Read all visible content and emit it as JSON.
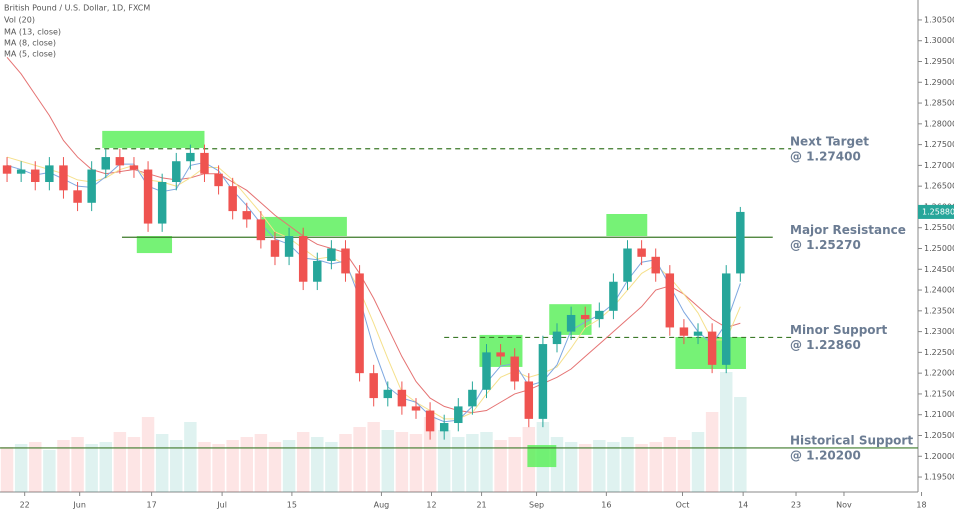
{
  "chart_data": {
    "type": "candlestick",
    "title": "British Pound / U.S. Dollar, 1D, FXCM",
    "volume_name": "Vol (20)",
    "xlim": [
      -1,
      129.2
    ],
    "ylim": [
      1.1914,
      1.3098
    ],
    "vol_ylim": [
      0,
      140
    ],
    "grid": false,
    "xticks": [
      {
        "value": 2.5,
        "label": "22"
      },
      {
        "value": 10.3,
        "label": "Jun"
      },
      {
        "value": 20.5,
        "label": "17"
      },
      {
        "value": 30.5,
        "label": "Jul"
      },
      {
        "value": 40.4,
        "label": "15"
      },
      {
        "value": 53.1,
        "label": "Aug"
      },
      {
        "value": 60.2,
        "label": "12"
      },
      {
        "value": 67.3,
        "label": "21"
      },
      {
        "value": 75.1,
        "label": "Sep"
      },
      {
        "value": 85,
        "label": "16"
      },
      {
        "value": 95.8,
        "label": "Oct"
      },
      {
        "value": 104.4,
        "label": "14"
      },
      {
        "value": 111.9,
        "label": "23"
      },
      {
        "value": 118.7,
        "label": "Nov"
      },
      {
        "value": 129.7,
        "label": "18"
      }
    ],
    "yticks": [
      {
        "value": 1.195,
        "label": "1.19500"
      },
      {
        "value": 1.2,
        "label": "1.20000"
      },
      {
        "value": 1.205,
        "label": "1.20500"
      },
      {
        "value": 1.21,
        "label": "1.21000"
      },
      {
        "value": 1.215,
        "label": "1.21500"
      },
      {
        "value": 1.22,
        "label": "1.22000"
      },
      {
        "value": 1.225,
        "label": "1.22500"
      },
      {
        "value": 1.23,
        "label": "1.23000"
      },
      {
        "value": 1.235,
        "label": "1.23500"
      },
      {
        "value": 1.24,
        "label": "1.24000"
      },
      {
        "value": 1.245,
        "label": "1.24500"
      },
      {
        "value": 1.25,
        "label": "1.25000"
      },
      {
        "value": 1.255,
        "label": "1.25500"
      },
      {
        "value": 1.26,
        "label": "1.26000"
      },
      {
        "value": 1.265,
        "label": "1.26500"
      },
      {
        "value": 1.27,
        "label": "1.27000"
      },
      {
        "value": 1.275,
        "label": "1.27500"
      },
      {
        "value": 1.28,
        "label": "1.28000"
      },
      {
        "value": 1.285,
        "label": "1.28500"
      },
      {
        "value": 1.29,
        "label": "1.29000"
      },
      {
        "value": 1.295,
        "label": "1.29500"
      },
      {
        "value": 1.3,
        "label": "1.30000"
      },
      {
        "value": 1.305,
        "label": "1.30500"
      }
    ],
    "x": [
      0,
      2,
      4,
      6,
      8,
      10,
      12,
      14,
      16,
      18,
      20,
      22,
      24,
      26,
      28,
      30,
      32,
      34,
      36,
      38,
      40,
      42,
      44,
      46,
      48,
      50,
      52,
      54,
      56,
      58,
      60,
      62,
      64,
      66,
      68,
      70,
      72,
      74,
      76,
      78,
      80,
      82,
      84,
      86,
      88,
      90,
      92,
      94,
      96,
      98,
      100,
      102,
      104
    ],
    "up_color": "#26a69a",
    "down_color": "#ef5350",
    "ohlc": {
      "open": [
        1.27,
        1.268,
        1.269,
        1.266,
        1.27,
        1.264,
        1.261,
        1.269,
        1.272,
        1.27,
        1.269,
        1.256,
        1.266,
        1.271,
        1.273,
        1.268,
        1.265,
        1.259,
        1.257,
        1.252,
        1.248,
        1.253,
        1.242,
        1.247,
        1.25,
        1.244,
        1.22,
        1.214,
        1.216,
        1.212,
        1.211,
        1.206,
        1.208,
        1.212,
        1.216,
        1.225,
        1.224,
        1.218,
        1.209,
        1.227,
        1.23,
        1.234,
        1.233,
        1.235,
        1.242,
        1.25,
        1.248,
        1.244,
        1.231,
        1.229,
        1.23,
        1.222,
        1.244
      ],
      "high": [
        1.272,
        1.271,
        1.271,
        1.272,
        1.272,
        1.266,
        1.271,
        1.274,
        1.274,
        1.272,
        1.271,
        1.268,
        1.273,
        1.275,
        1.275,
        1.27,
        1.267,
        1.261,
        1.259,
        1.254,
        1.255,
        1.255,
        1.249,
        1.252,
        1.252,
        1.246,
        1.222,
        1.218,
        1.218,
        1.214,
        1.213,
        1.21,
        1.214,
        1.218,
        1.227,
        1.227,
        1.226,
        1.22,
        1.229,
        1.232,
        1.236,
        1.236,
        1.237,
        1.244,
        1.252,
        1.252,
        1.25,
        1.246,
        1.233,
        1.232,
        1.232,
        1.246,
        1.26
      ],
      "low": [
        1.266,
        1.266,
        1.264,
        1.264,
        1.262,
        1.259,
        1.259,
        1.267,
        1.268,
        1.267,
        1.254,
        1.254,
        1.264,
        1.269,
        1.266,
        1.263,
        1.257,
        1.255,
        1.25,
        1.246,
        1.246,
        1.24,
        1.24,
        1.245,
        1.242,
        1.218,
        1.212,
        1.212,
        1.21,
        1.209,
        1.204,
        1.204,
        1.206,
        1.21,
        1.214,
        1.222,
        1.216,
        1.207,
        1.207,
        1.225,
        1.228,
        1.231,
        1.231,
        1.233,
        1.24,
        1.246,
        1.242,
        1.229,
        1.227,
        1.227,
        1.22,
        1.22,
        1.242
      ],
      "close": [
        1.268,
        1.269,
        1.266,
        1.27,
        1.264,
        1.261,
        1.269,
        1.272,
        1.27,
        1.269,
        1.256,
        1.266,
        1.271,
        1.273,
        1.268,
        1.265,
        1.259,
        1.257,
        1.252,
        1.248,
        1.253,
        1.242,
        1.247,
        1.25,
        1.244,
        1.22,
        1.214,
        1.216,
        1.212,
        1.211,
        1.206,
        1.208,
        1.212,
        1.216,
        1.225,
        1.224,
        1.218,
        1.209,
        1.227,
        1.23,
        1.234,
        1.233,
        1.235,
        1.242,
        1.25,
        1.248,
        1.244,
        1.231,
        1.229,
        1.23,
        1.222,
        1.244,
        1.2588
      ]
    },
    "volume": [
      45,
      48,
      50,
      42,
      52,
      55,
      48,
      50,
      60,
      55,
      75,
      58,
      52,
      70,
      50,
      48,
      52,
      55,
      58,
      50,
      52,
      60,
      55,
      50,
      58,
      65,
      70,
      62,
      60,
      58,
      75,
      62,
      55,
      58,
      60,
      52,
      55,
      65,
      70,
      55,
      50,
      48,
      52,
      50,
      55,
      48,
      50,
      55,
      52,
      60,
      80,
      120,
      95
    ],
    "series": [
      {
        "name": "MA (13, close)",
        "color": "#e57373",
        "values": [
          1.296,
          1.292,
          1.287,
          1.282,
          1.276,
          1.272,
          1.269,
          1.268,
          1.2685,
          1.269,
          1.268,
          1.267,
          1.2665,
          1.267,
          1.268,
          1.268,
          1.266,
          1.264,
          1.261,
          1.258,
          1.2555,
          1.253,
          1.251,
          1.25,
          1.249,
          1.244,
          1.238,
          1.231,
          1.224,
          1.218,
          1.214,
          1.212,
          1.211,
          1.2105,
          1.211,
          1.213,
          1.215,
          1.216,
          1.2175,
          1.219,
          1.221,
          1.224,
          1.227,
          1.23,
          1.233,
          1.236,
          1.24,
          1.241,
          1.239,
          1.236,
          1.233,
          1.231,
          1.232
        ]
      },
      {
        "name": "MA (8, close)",
        "color": "#f5e08c",
        "values": [
          1.272,
          1.271,
          1.27,
          1.269,
          1.268,
          1.2665,
          1.266,
          1.267,
          1.269,
          1.27,
          1.2665,
          1.266,
          1.265,
          1.267,
          1.2695,
          1.2695,
          1.2665,
          1.2625,
          1.2585,
          1.254,
          1.2525,
          1.25,
          1.2475,
          1.248,
          1.246,
          1.24,
          1.232,
          1.2235,
          1.2155,
          1.213,
          1.211,
          1.209,
          1.209,
          1.2105,
          1.215,
          1.219,
          1.2205,
          1.219,
          1.22,
          1.2215,
          1.226,
          1.231,
          1.233,
          1.236,
          1.24,
          1.244,
          1.246,
          1.243,
          1.239,
          1.2345,
          1.228,
          1.228,
          1.236
        ]
      },
      {
        "name": "MA (5, close)",
        "color": "#7fa8e0",
        "values": [
          1.27,
          1.269,
          1.2677,
          1.2683,
          1.2667,
          1.265,
          1.2647,
          1.2673,
          1.2703,
          1.2703,
          1.265,
          1.2637,
          1.2643,
          1.27,
          1.2707,
          1.2687,
          1.264,
          1.2603,
          1.256,
          1.2523,
          1.251,
          1.2477,
          1.2473,
          1.2463,
          1.247,
          1.238,
          1.226,
          1.2167,
          1.214,
          1.213,
          1.2097,
          1.2083,
          1.2087,
          1.212,
          1.2177,
          1.2217,
          1.2223,
          1.217,
          1.218,
          1.222,
          1.2303,
          1.2323,
          1.234,
          1.2367,
          1.2423,
          1.2467,
          1.2473,
          1.241,
          1.2347,
          1.23,
          1.227,
          1.232,
          1.2416
        ]
      }
    ],
    "last_price_label": "1.25880",
    "levels": [
      {
        "title": "Next Target",
        "level": 1.274,
        "level_label": "@ 1.27400",
        "x0": 12.5,
        "x1": 111.2,
        "style": "dashed"
      },
      {
        "title": "Major Resistance",
        "level": 1.2527,
        "level_label": "@ 1.25270",
        "x0": 16.3,
        "x1": 108.6,
        "style": "solid"
      },
      {
        "title": "Minor Support",
        "level": 1.2286,
        "level_label": "@ 1.22860",
        "x0": 62,
        "x1": 111.2,
        "style": "dashed"
      },
      {
        "title": "Historical Support",
        "level": 1.202,
        "level_label": "@ 1.20200",
        "x0": -1,
        "x1": 129.2,
        "style": "solid"
      }
    ],
    "highlights": [
      {
        "x0": 13.5,
        "x1": 28,
        "y0": 1.2742,
        "y1": 1.2783
      },
      {
        "x0": 18.4,
        "x1": 23.4,
        "y0": 1.2489,
        "y1": 1.253
      },
      {
        "x0": 36.1,
        "x1": 48.2,
        "y0": 1.253,
        "y1": 1.2576
      },
      {
        "x0": 67,
        "x1": 73.1,
        "y0": 1.2215,
        "y1": 1.2292
      },
      {
        "x0": 76.9,
        "x1": 82.9,
        "y0": 1.2292,
        "y1": 1.2366
      },
      {
        "x0": 85,
        "x1": 90.8,
        "y0": 1.253,
        "y1": 1.2583
      },
      {
        "x0": 94.8,
        "x1": 104.8,
        "y0": 1.221,
        "y1": 1.2287
      },
      {
        "x0": 73.8,
        "x1": 77.9,
        "y0": 1.1974,
        "y1": 1.2027
      }
    ]
  }
}
